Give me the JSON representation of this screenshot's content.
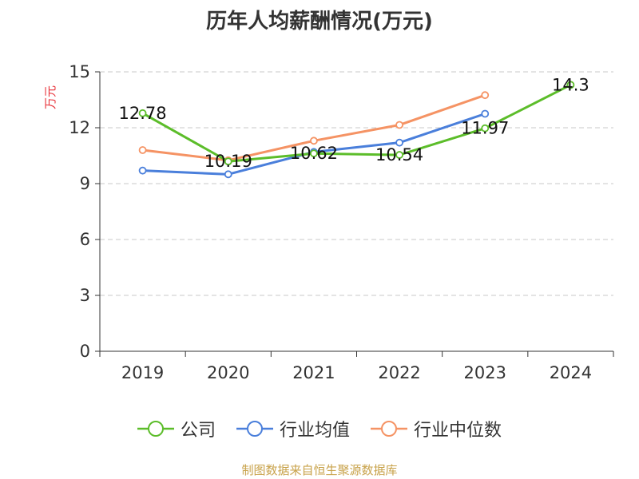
{
  "title": "历年人均薪酬情况(万元)",
  "source_note": "制图数据来自恒生聚源数据库",
  "colors": {
    "company": "#5cbd2a",
    "industry_avg": "#4a7fdb",
    "industry_median": "#f59364",
    "ylabel": "#e8333a",
    "source": "#c8a24a"
  },
  "chart_data": {
    "type": "line",
    "title": "历年人均薪酬情况(万元)",
    "ylabel": "万元",
    "xlabel": "",
    "categories": [
      "2019",
      "2020",
      "2021",
      "2022",
      "2023",
      "2024"
    ],
    "ylim": [
      0,
      15
    ],
    "yticks": [
      0,
      3,
      6,
      9,
      12,
      15
    ],
    "grid": "horizontal dashed",
    "legend_position": "bottom",
    "series": [
      {
        "name": "公司",
        "color": "#5cbd2a",
        "values": [
          12.78,
          10.19,
          10.62,
          10.54,
          11.97,
          14.3
        ],
        "data_labels": [
          "12.78",
          "10.19",
          "10.62",
          "10.54",
          "11.97",
          "14.3"
        ]
      },
      {
        "name": "行业均值",
        "color": "#4a7fdb",
        "values": [
          9.7,
          9.5,
          10.7,
          11.2,
          12.75,
          null
        ]
      },
      {
        "name": "行业中位数",
        "color": "#f59364",
        "values": [
          10.8,
          10.25,
          11.3,
          12.15,
          13.75,
          null
        ]
      }
    ]
  }
}
